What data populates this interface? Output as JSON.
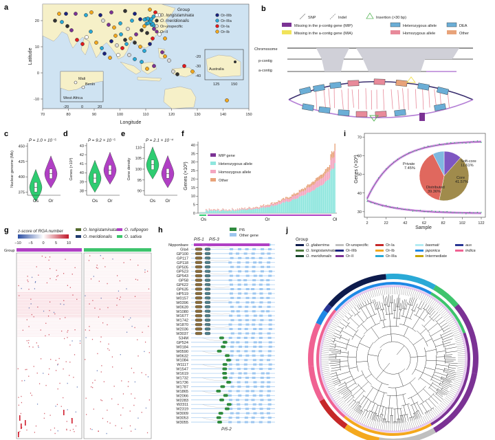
{
  "panels": {
    "a": {
      "label": "a",
      "ylabel": "Latitude",
      "xlabel": "Longitude",
      "xticks": [
        "70",
        "80",
        "90",
        "100",
        "110",
        "120",
        "130",
        "140",
        "150"
      ],
      "yticks": [
        "20",
        "10",
        "0",
        "-10"
      ],
      "legend_title": "Group",
      "legend": [
        {
          "name": "O. longistaminata",
          "color": "#ffffff",
          "italic": true
        },
        {
          "name": "O. meridionalis",
          "color": "#333333",
          "italic": true
        },
        {
          "name": "Or-unspecific",
          "color": "#d9d9d9",
          "italic": false
        },
        {
          "name": "Or-II",
          "color": "#7b3294",
          "italic": false
        },
        {
          "name": "Or-IIIb",
          "color": "#1a237e",
          "italic": false
        },
        {
          "name": "Or-IIIa",
          "color": "#29a9d6",
          "italic": false
        },
        {
          "name": "Or-Ia",
          "color": "#e41a1c",
          "italic": false
        },
        {
          "name": "Or-Ib",
          "color": "#f4a81d",
          "italic": false
        }
      ],
      "inset_africa": {
        "label": "West Africa",
        "places": [
          "Mali",
          "Benin"
        ],
        "xticks": [
          "-20",
          "0",
          "20"
        ]
      },
      "inset_australia": {
        "label": "Australia",
        "xticks": [
          "125",
          "150"
        ],
        "yticks": [
          "-20",
          "-30",
          "-40"
        ]
      }
    },
    "b": {
      "label": "b",
      "legend": [
        "SNP",
        "Indel",
        "Insertion (>30 bp)",
        "Missing in the p-contig gene (MIP)",
        "Heterozygous allele",
        "DEA",
        "Missing in the a-contig gene (MIA)",
        "Homozygous allele",
        "Other"
      ],
      "tracks": [
        "Chromosome",
        "p-contig",
        "a-contig"
      ]
    },
    "c": {
      "label": "c",
      "p": "P = 1.0 × 10⁻⁵",
      "ylabel": "Nuclear genome (Mb)",
      "yticks": [
        "450",
        "425",
        "400",
        "375"
      ],
      "groups": [
        "Os",
        "Or"
      ]
    },
    "d": {
      "label": "d",
      "p": "P = 9.2 × 10⁻⁵",
      "ylabel": "Genes (×10³)",
      "yticks": [
        "43",
        "42",
        "41",
        "40",
        "39",
        "38"
      ],
      "groups": [
        "Os",
        "Or"
      ]
    },
    "e": {
      "label": "e",
      "p": "P = 2.1 × 10⁻⁴",
      "ylabel": "Gene density",
      "yticks": [
        "110",
        "105",
        "100",
        "95",
        "90"
      ],
      "groups": [
        "Os",
        "Or"
      ]
    },
    "f": {
      "label": "f",
      "ylabel": "Genes (×10³)",
      "yticks": [
        "40",
        "35",
        "30",
        "25",
        "20",
        "15",
        "10",
        "5",
        "0"
      ],
      "xgroups": [
        "Os",
        "Or",
        "Ol"
      ],
      "legend": [
        "MIP gene",
        "Heterozygous allele",
        "Homozygous allele",
        "Other"
      ]
    },
    "g": {
      "label": "g",
      "scale_title": "z-score of RGA number",
      "scale_ticks": [
        "−10",
        "−5",
        "0",
        "5",
        "10"
      ],
      "group_label": "Group",
      "legend": [
        {
          "name": "O. longistaminata",
          "color": "#556b2f"
        },
        {
          "name": "O. rufipogon",
          "color": "#b03fc4"
        },
        {
          "name": "O. meridionalis",
          "color": "#1f3b6e"
        },
        {
          "name": "O. sativa",
          "color": "#3ec46d"
        }
      ]
    },
    "h": {
      "label": "h",
      "legend": [
        "Pi5",
        "Other gene"
      ],
      "locus_labels": [
        "Pi5-1",
        "Pi5-3",
        "Pi5-2"
      ],
      "rows": [
        "Nipponbare",
        "Gla4",
        "GP100",
        "GP117",
        "GP118",
        "GP505",
        "GP523",
        "GP543",
        "GP58",
        "GP622",
        "GP635",
        "HP519",
        "W0157",
        "W0396",
        "W0639",
        "W1080",
        "W1677",
        "W1742",
        "W1870",
        "W2036",
        "W3037",
        "534M",
        "GP524",
        "W0184",
        "W0590",
        "W0632",
        "W1084",
        "W1117",
        "W1547",
        "W1619",
        "W1732",
        "W1736",
        "W1787",
        "W1865",
        "W2066",
        "W2283",
        "W2311",
        "W2319",
        "W3009",
        "W3053",
        "W3055"
      ]
    },
    "i": {
      "label": "i",
      "ylabel": "Genes (×10³)",
      "xlabel": "Sample",
      "yticks": [
        "70",
        "60",
        "50",
        "40",
        "30"
      ],
      "xticks": [
        "2",
        "22",
        "42",
        "62",
        "82",
        "102",
        "122"
      ],
      "pie": [
        {
          "name": "Core",
          "value": 41.57,
          "label": "41.57%",
          "color": "#a08b4c"
        },
        {
          "name": "Distributed",
          "value": 39.36,
          "label": "39.36%",
          "color": "#e0685e"
        },
        {
          "name": "Private",
          "value": 7.45,
          "label": "7.45%",
          "color": "#7fb8e0"
        },
        {
          "name": "Soft-core",
          "value": 11.61,
          "label": "11.61%",
          "color": "#7e57c2"
        }
      ]
    },
    "j": {
      "label": "j",
      "legend_title": "Group",
      "legend": [
        {
          "name": "O. glaberrima",
          "color": "#0d1b4c"
        },
        {
          "name": "O. longistaminata",
          "color": "#4a7a3a"
        },
        {
          "name": "O. meridionalis",
          "color": "#17452a"
        },
        {
          "name": "Or-unspecific",
          "color": "#bfbfbf"
        },
        {
          "name": "Or-IIIb",
          "color": "#1a237e"
        },
        {
          "name": "Or-II",
          "color": "#7b3294"
        },
        {
          "name": "Or-Ia",
          "color": "#c62828"
        },
        {
          "name": "Or-Ib",
          "color": "#f4a81d"
        },
        {
          "name": "Or-IIIa",
          "color": "#29a9d6"
        },
        {
          "name": "basmati",
          "color": "#b2ebf2"
        },
        {
          "name": "japonica",
          "color": "#1e88e5"
        },
        {
          "name": "Intermediate",
          "color": "#c8a400"
        },
        {
          "name": "aus",
          "color": "#283593"
        },
        {
          "name": "indica",
          "color": "#f06292"
        }
      ]
    }
  },
  "chart_data": [
    {
      "type": "violin",
      "panel": "c",
      "ylabel": "Nuclear genome (Mb)",
      "categories": [
        "Os",
        "Or"
      ],
      "medians": [
        383,
        405
      ],
      "ylim": [
        370,
        455
      ]
    },
    {
      "type": "violin",
      "panel": "d",
      "ylabel": "Genes (×10³)",
      "categories": [
        "Os",
        "Or"
      ],
      "medians": [
        39.4,
        40.3
      ],
      "ylim": [
        37.5,
        43
      ]
    },
    {
      "type": "violin",
      "panel": "e",
      "ylabel": "Gene density",
      "categories": [
        "Os",
        "Or"
      ],
      "medians": [
        102,
        98
      ],
      "ylim": [
        88,
        112
      ]
    },
    {
      "type": "bar",
      "panel": "f",
      "ylabel": "Genes (×10³)",
      "ylim": [
        0,
        42
      ],
      "series": [
        {
          "name": "Heterozygous allele"
        },
        {
          "name": "Homozygous allele"
        },
        {
          "name": "Other"
        },
        {
          "name": "MIP gene"
        }
      ]
    },
    {
      "type": "line",
      "panel": "i",
      "ylabel": "Genes (×10³)",
      "xlabel": "Sample",
      "xlim": [
        2,
        122
      ],
      "ylim": [
        27,
        72
      ],
      "series": [
        {
          "name": "pan",
          "x": [
            2,
            22,
            42,
            62,
            82,
            102,
            122
          ],
          "y": [
            37,
            54,
            60,
            63,
            65,
            67,
            68
          ]
        },
        {
          "name": "core",
          "x": [
            2,
            22,
            42,
            62,
            82,
            102,
            122
          ],
          "y": [
            36,
            33,
            31.5,
            30.5,
            30,
            29.5,
            29
          ]
        }
      ]
    },
    {
      "type": "pie",
      "panel": "i",
      "categories": [
        "Core",
        "Distributed",
        "Private",
        "Soft-core"
      ],
      "values": [
        41.57,
        39.36,
        7.45,
        11.61
      ]
    }
  ]
}
